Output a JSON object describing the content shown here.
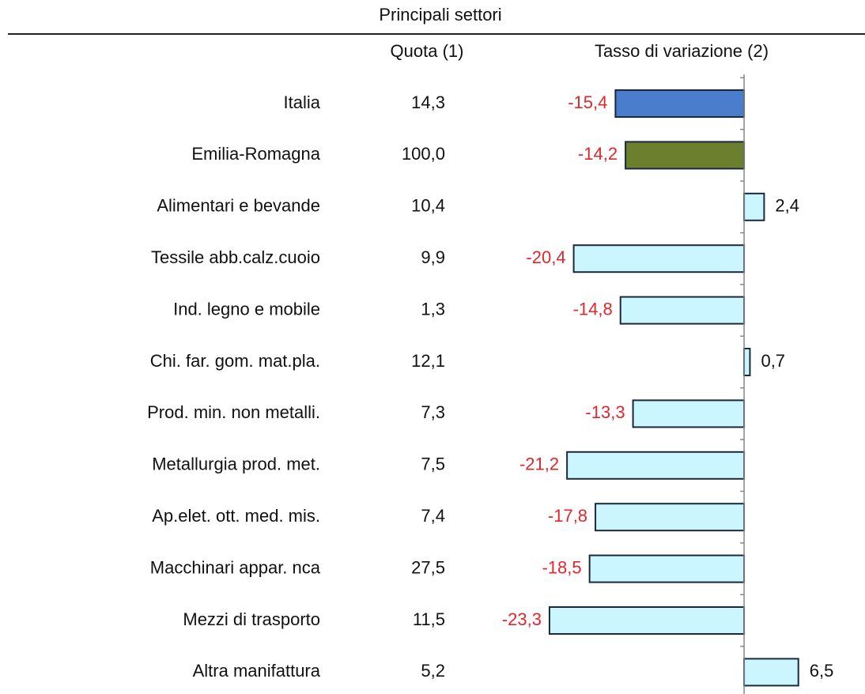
{
  "chart_data": {
    "type": "hbar",
    "subtitle": "Principali settori",
    "column_headers": [
      "Quota (1)",
      "Tasso di variazione (2)"
    ],
    "categories": [
      "Italia",
      "Emilia-Romagna",
      "Alimentari e bevande",
      "Tessile abb.calz.cuoio",
      "Ind. legno e mobile",
      "Chi. far. gom. mat.pla.",
      "Prod. min. non metalli.",
      "Metallurgia prod. met.",
      "Ap.elet. ott. med. mis.",
      "Macchinari appar. nca",
      "Mezzi di trasporto",
      "Altra manifattura"
    ],
    "quota": [
      "14,3",
      "100,0",
      "10,4",
      "9,9",
      "1,3",
      "12,1",
      "7,3",
      "7,5",
      "7,4",
      "27,5",
      "11,5",
      "5,2"
    ],
    "values": [
      -15.4,
      -14.2,
      2.4,
      -20.4,
      -14.8,
      0.7,
      -13.3,
      -21.2,
      -17.8,
      -18.5,
      -23.3,
      6.5
    ],
    "value_labels": [
      "-15,4",
      "-14,2",
      "2,4",
      "-20,4",
      "-14,8",
      "0,7",
      "-13,3",
      "-21,2",
      "-17,8",
      "-18,5",
      "-23,3",
      "6,5"
    ],
    "colors": [
      "#4a7dcc",
      "#6b7f2e",
      "#ccf6ff",
      "#ccf6ff",
      "#ccf6ff",
      "#ccf6ff",
      "#ccf6ff",
      "#ccf6ff",
      "#ccf6ff",
      "#ccf6ff",
      "#ccf6ff",
      "#ccf6ff"
    ],
    "negative_label_color": "#e3262b",
    "xlim": [
      -25,
      7
    ]
  }
}
